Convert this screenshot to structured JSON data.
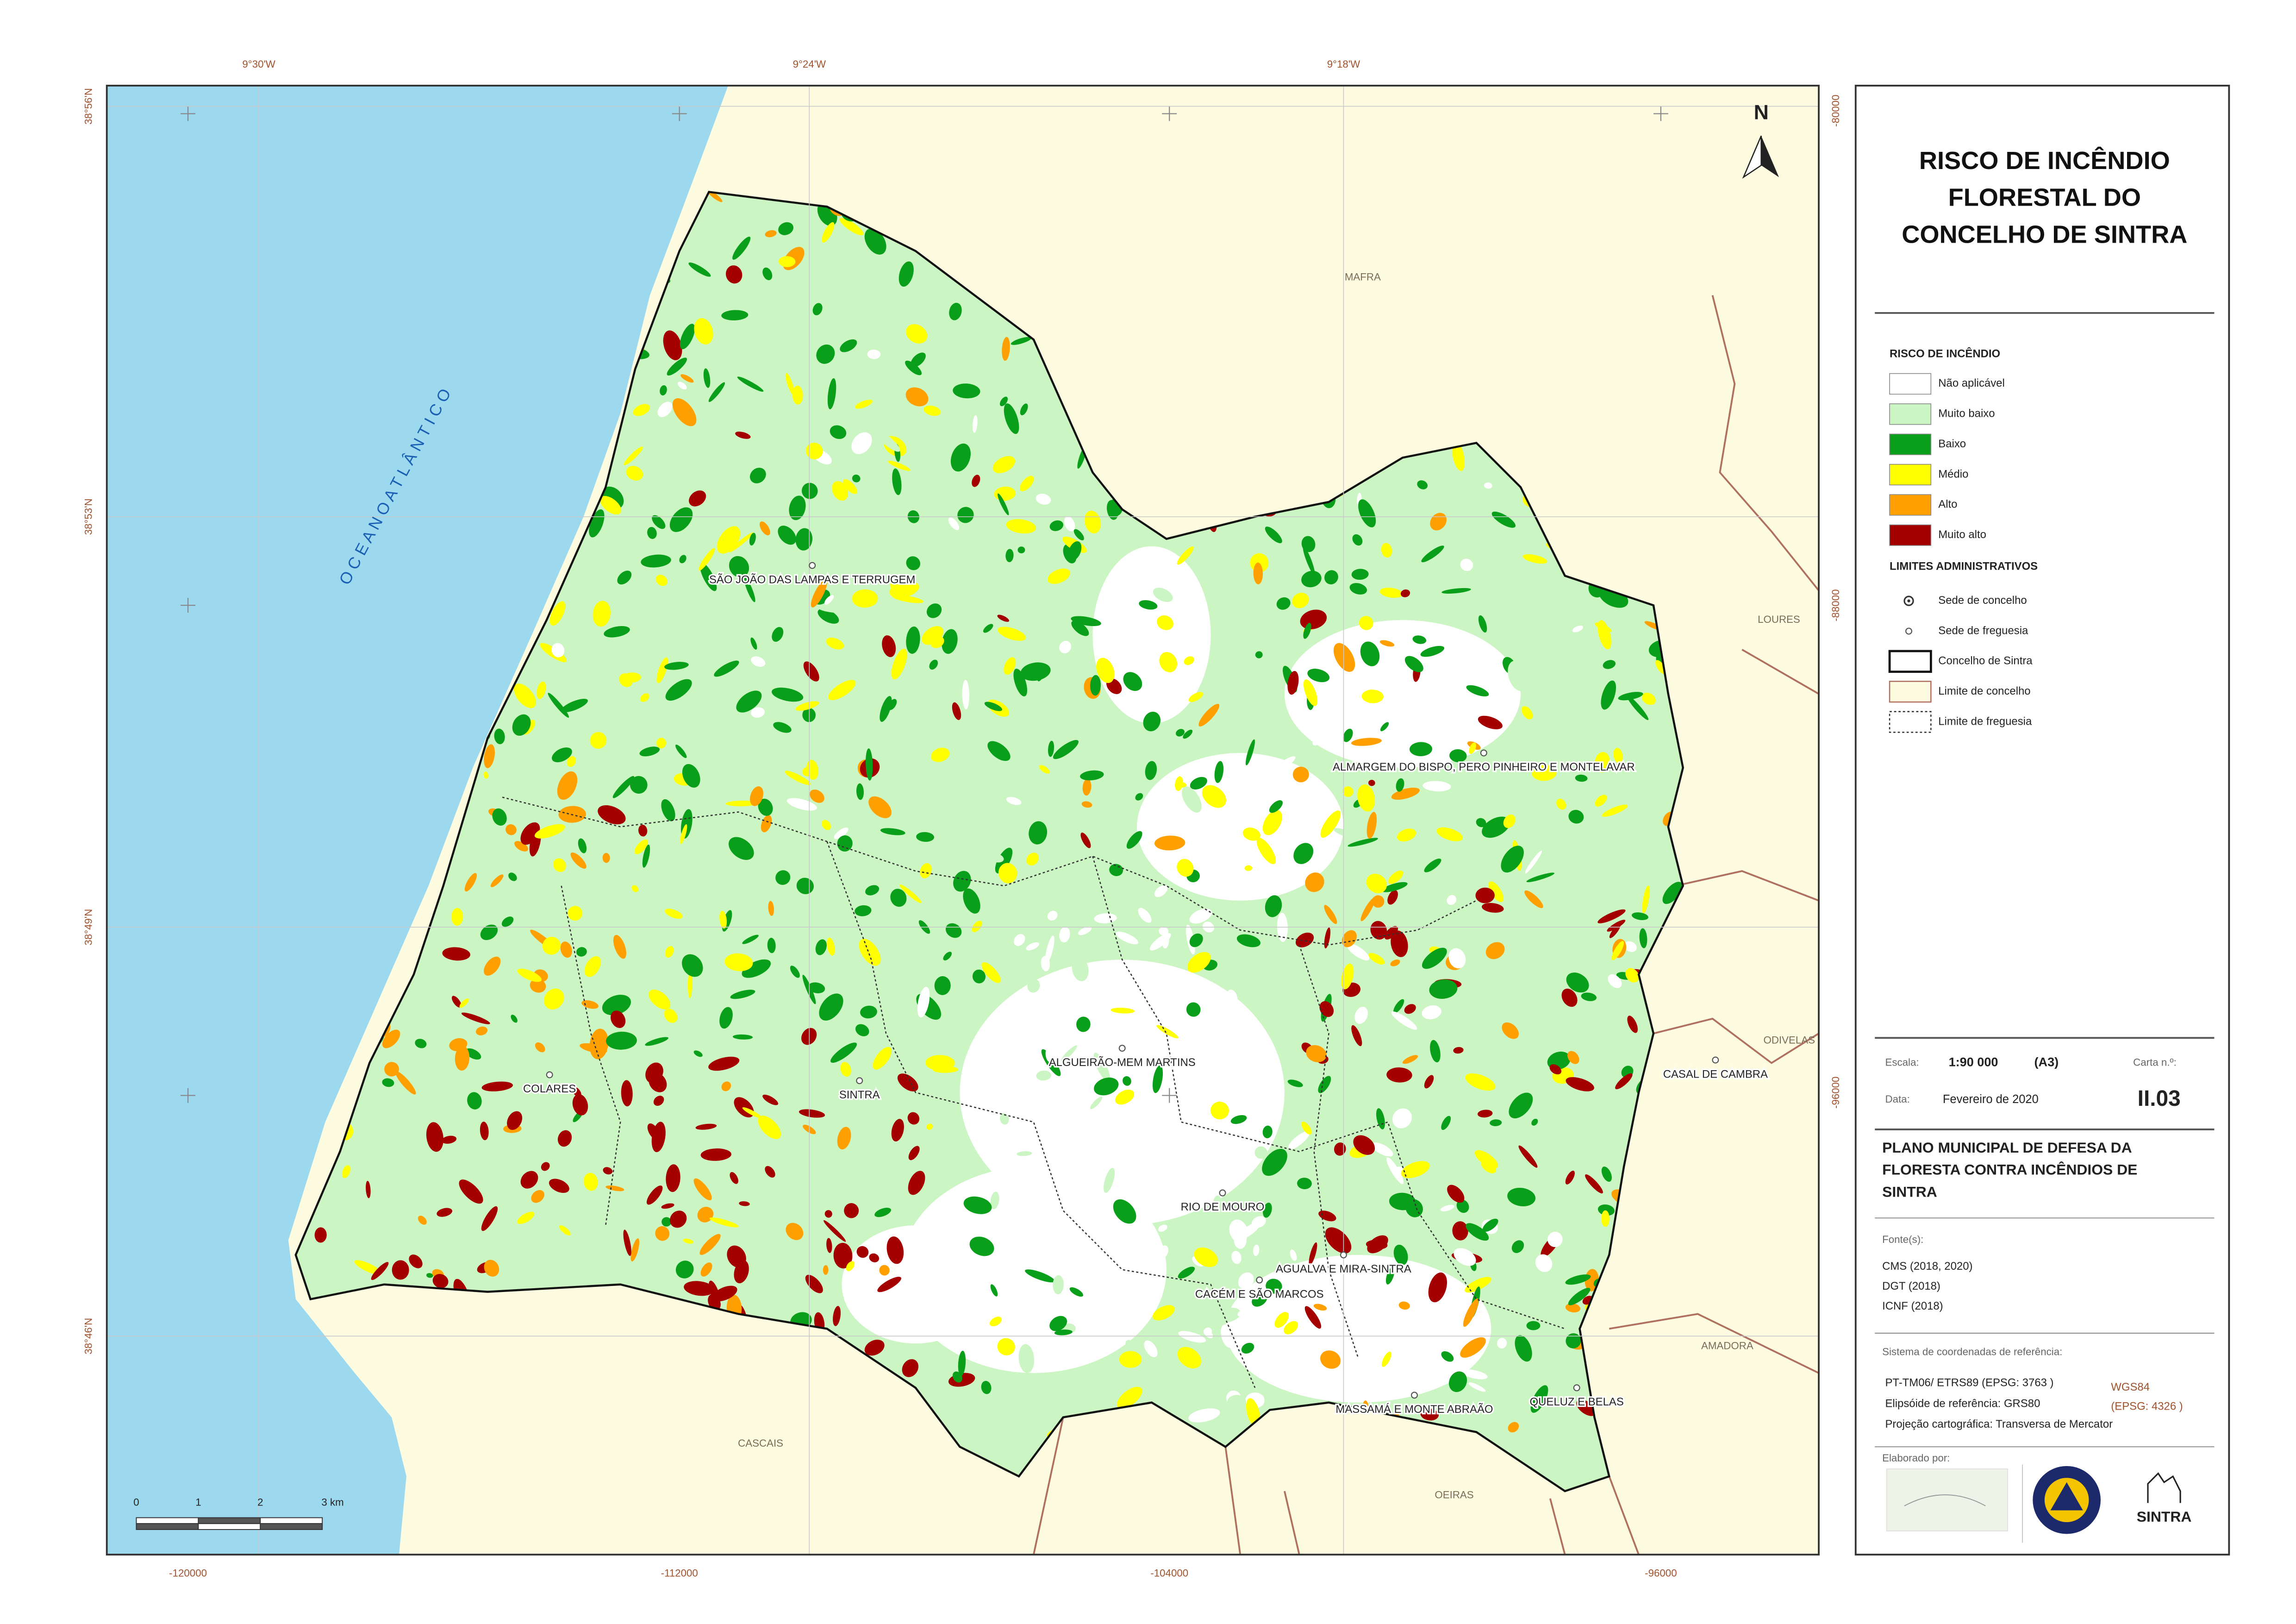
{
  "map": {
    "top_labels": [
      "9°30'W",
      "9°24'W",
      "9°18'W"
    ],
    "left_labels": [
      "38°56'N",
      "38°53'N",
      "38°49'N",
      "38°46'N"
    ],
    "bottom_labels": [
      "-120000",
      "-112000",
      "-104000",
      "-96000"
    ],
    "right_labels": [
      "-80000",
      "-88000",
      "-96000"
    ],
    "ocean_label": "O C E A N O   A T L Â N T I C O",
    "north": "N",
    "parishes": [
      "SÃO JOÃO DAS LAMPAS E TERRUGEM",
      "ALMARGEM DO BISPO, PERO PINHEIRO E MONTELAVAR",
      "ALGUEIRÃO-MEM MARTINS",
      "SINTRA",
      "COLARES",
      "RIO DE MOURO",
      "AGUALVA E MIRA-SINTRA",
      "CACÉM E SÃO MARCOS",
      "MASSAMÁ E MONTE ABRAÃO",
      "QUELUZ E BELAS",
      "CASAL DE CAMBRA"
    ],
    "neighbors": [
      "MAFRA",
      "LOURES",
      "ODIVELAS",
      "AMADORA",
      "OEIRAS",
      "CASCAIS"
    ],
    "scale_bar": [
      "0",
      "1",
      "2",
      "3 km"
    ]
  },
  "panel": {
    "title": [
      "RISCO DE INCÊNDIO",
      "FLORESTAL DO",
      "CONCELHO DE SINTRA"
    ],
    "risk_heading": "RISCO DE INCÊNDIO",
    "risk_items": [
      {
        "label": "Não aplicável",
        "color": "#ffffff"
      },
      {
        "label": "Muito baixo",
        "color": "#ccf5c4"
      },
      {
        "label": "Baixo",
        "color": "#0a9f1a"
      },
      {
        "label": "Médio",
        "color": "#ffff00"
      },
      {
        "label": "Alto",
        "color": "#ffa000"
      },
      {
        "label": "Muito alto",
        "color": "#a50000"
      }
    ],
    "admin_heading": "LIMITES ADMINISTRATIVOS",
    "admin_items": [
      "Sede de concelho",
      "Sede de freguesia",
      "Concelho de Sintra",
      "Limite de concelho",
      "Limite de freguesia"
    ],
    "scale_label": "Escala:",
    "scale": "1:90 000",
    "paper": "(A3)",
    "sheet_label": "Carta n.º:",
    "sheet": "II.03",
    "date_label": "Data:",
    "date": "Fevereiro de 2020",
    "plan": [
      "PLANO MUNICIPAL DE DEFESA DA",
      "FLORESTA CONTRA INCÊNDIOS DE",
      "SINTRA"
    ],
    "sources_label": "Fonte(s):",
    "sources": [
      "CMS (2018, 2020)",
      "DGT (2018)",
      "ICNF (2018)"
    ],
    "crs_label": "Sistema de coordenadas de referência:",
    "crs": [
      "PT-TM06/ ETRS89 (EPSG: 3763 )",
      "Elipsóide de referência: GRS80",
      "Projeção cartográfica: Transversa de Mercator"
    ],
    "crs_alt": [
      "WGS84",
      "(EPSG: 4326 )"
    ],
    "made_by": "Elaborado por:",
    "logo_text": "SINTRA"
  }
}
